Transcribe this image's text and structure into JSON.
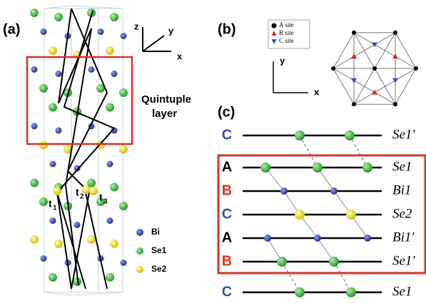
{
  "panel_a": {
    "label": "(a)",
    "axes": {
      "z": "z",
      "y": "y",
      "x": "x"
    },
    "annotation": [
      "Quintuple",
      "layer"
    ],
    "hoppings": [
      {
        "base": "t",
        "sub": "1"
      },
      {
        "base": "t",
        "sub": "2"
      },
      {
        "base": "t",
        "sub": "3"
      }
    ],
    "legend": [
      "Bi",
      "Se1",
      "Se2"
    ]
  },
  "panel_b": {
    "label": "(b)",
    "legend": [
      "A site",
      "B site",
      "C site"
    ],
    "axes": {
      "y": "y",
      "x": "x"
    }
  },
  "panel_c": {
    "label": "(c)",
    "rows": [
      {
        "stack": "C",
        "atom": "Se1'"
      },
      {
        "stack": "A",
        "atom": "Se1"
      },
      {
        "stack": "B",
        "atom": "Bi1"
      },
      {
        "stack": "C",
        "atom": "Se2"
      },
      {
        "stack": "A",
        "atom": "Bi1'"
      },
      {
        "stack": "B",
        "atom": "Se1'"
      },
      {
        "stack": "C",
        "atom": "Se1"
      }
    ]
  }
}
